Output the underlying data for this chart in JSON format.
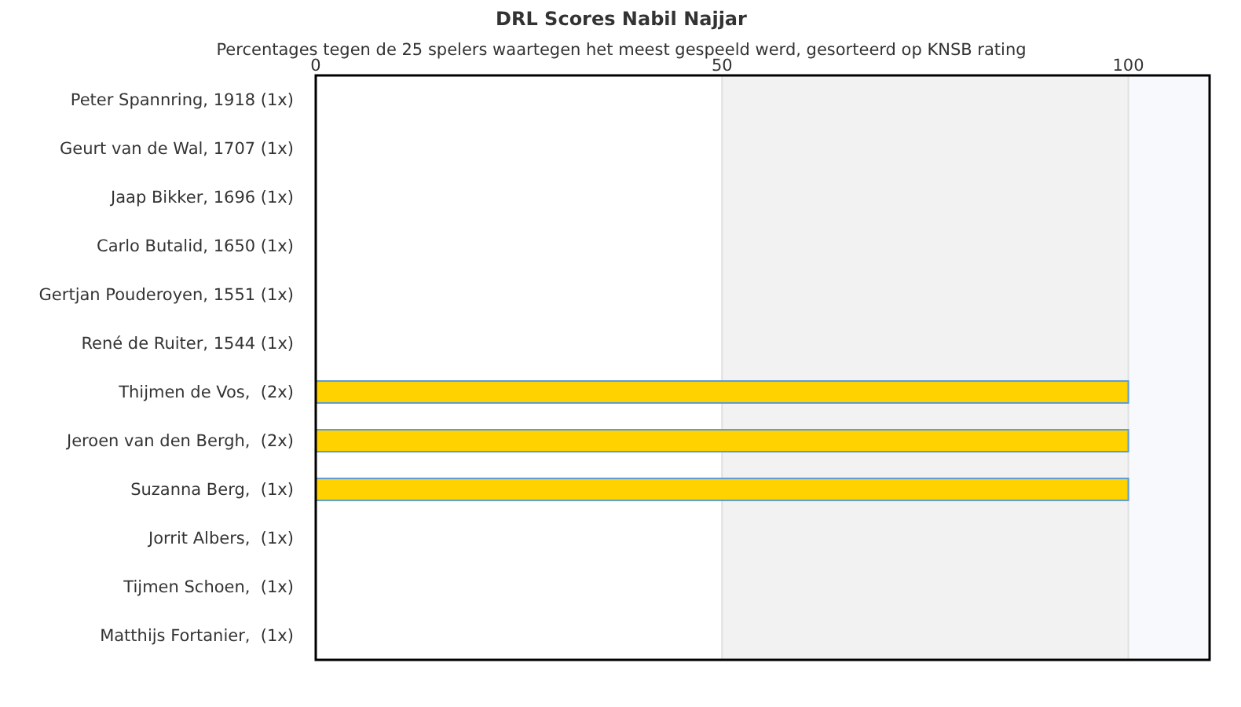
{
  "chart_data": {
    "type": "bar",
    "orientation": "horizontal",
    "title": "DRL Scores Nabil Najjar",
    "subtitle": "Percentages tegen de 25 spelers waartegen het meest gespeeld werd, gesorteerd op KNSB rating",
    "categories": [
      "Peter Spannring, 1918 (1x)",
      "Geurt van de Wal, 1707 (1x)",
      "Jaap Bikker, 1696 (1x)",
      "Carlo Butalid, 1650 (1x)",
      "Gertjan Pouderoyen, 1551 (1x)",
      "René de Ruiter, 1544 (1x)",
      "Thijmen de Vos,  (2x)",
      "Jeroen van den Bergh,  (2x)",
      "Suzanna Berg,  (1x)",
      "Jorrit Albers,  (1x)",
      "Tijmen Schoen,  (1x)",
      "Matthijs Fortanier,  (1x)"
    ],
    "values": [
      0,
      0,
      0,
      0,
      0,
      0,
      100,
      100,
      100,
      0,
      0,
      0
    ],
    "color": "#ffd200",
    "xlim": [
      0,
      110
    ],
    "xticks": [
      0,
      50,
      100
    ],
    "grid": "x",
    "bands": [
      {
        "axis": "x",
        "from": 50,
        "to": 100,
        "color": "#f2f2f2"
      },
      {
        "axis": "x",
        "from": 100,
        "to": 110,
        "color": "#f7f9fc"
      }
    ]
  }
}
